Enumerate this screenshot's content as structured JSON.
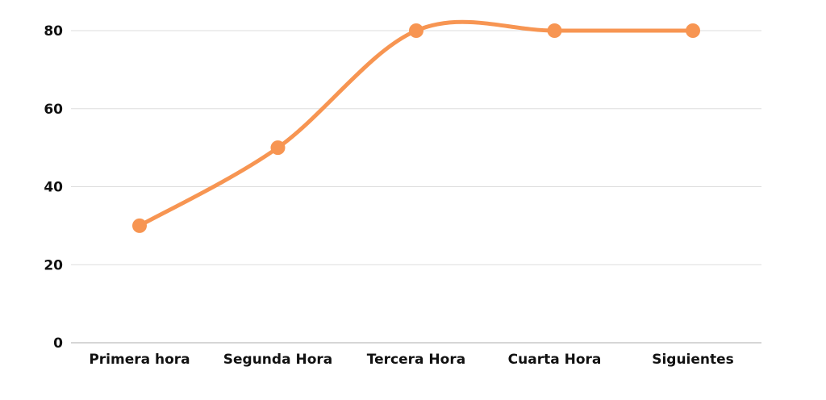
{
  "chart_data": {
    "type": "line",
    "title": "",
    "xlabel": "",
    "ylabel": "",
    "categories": [
      "Primera hora",
      "Segunda Hora",
      "Tercera Hora",
      "Cuarta Hora",
      "Siguientes"
    ],
    "series": [
      {
        "values": [
          30,
          50,
          80,
          80,
          80
        ],
        "color": "#f79552"
      }
    ],
    "ylim": [
      0,
      80
    ],
    "yticks": [
      "0",
      "20",
      "40",
      "60",
      "80"
    ],
    "grid": true,
    "legend": "none",
    "smooth": true,
    "markers": true
  }
}
